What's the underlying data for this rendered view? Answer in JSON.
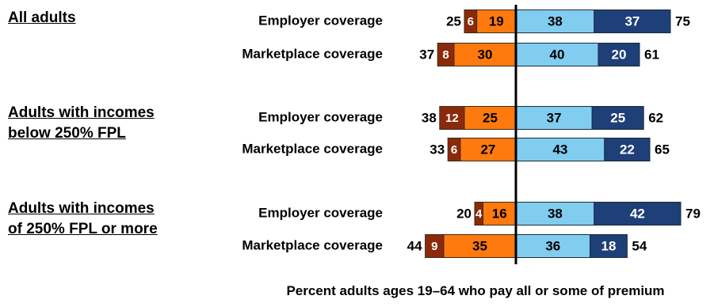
{
  "chart_data": {
    "type": "bar",
    "subtype": "diverging-stacked-horizontal",
    "xlabel": "Percent adults ages 19–64 who pay all or some of premium",
    "colors": {
      "all": "#8B2A0A",
      "some": "#FF7A0E",
      "some_right": "#80CDF0",
      "all_right": "#1F3F78",
      "center_line": "#000000"
    },
    "groups": [
      {
        "label_lines": [
          "All adults"
        ],
        "rows": [
          {
            "label": "Employer coverage",
            "left_total": 25,
            "left_dark": 6,
            "left_light": 19,
            "right_light": 38,
            "right_dark": 37,
            "right_total": 75
          },
          {
            "label": "Marketplace coverage",
            "left_total": 37,
            "left_dark": 8,
            "left_light": 30,
            "right_light": 40,
            "right_dark": 20,
            "right_total": 61
          }
        ]
      },
      {
        "label_lines": [
          "Adults with incomes",
          "below 250% FPL"
        ],
        "rows": [
          {
            "label": "Employer coverage",
            "left_total": 38,
            "left_dark": 12,
            "left_light": 25,
            "right_light": 37,
            "right_dark": 25,
            "right_total": 62
          },
          {
            "label": "Marketplace coverage",
            "left_total": 33,
            "left_dark": 6,
            "left_light": 27,
            "right_light": 43,
            "right_dark": 22,
            "right_total": 65
          }
        ]
      },
      {
        "label_lines": [
          "Adults with incomes",
          "of 250% FPL or more"
        ],
        "rows": [
          {
            "label": "Employer coverage",
            "left_total": 20,
            "left_dark": 4,
            "left_light": 16,
            "right_light": 38,
            "right_dark": 42,
            "right_total": 79
          },
          {
            "label": "Marketplace coverage",
            "left_total": 44,
            "left_dark": 9,
            "left_light": 35,
            "right_light": 36,
            "right_dark": 18,
            "right_total": 54
          }
        ]
      }
    ]
  }
}
